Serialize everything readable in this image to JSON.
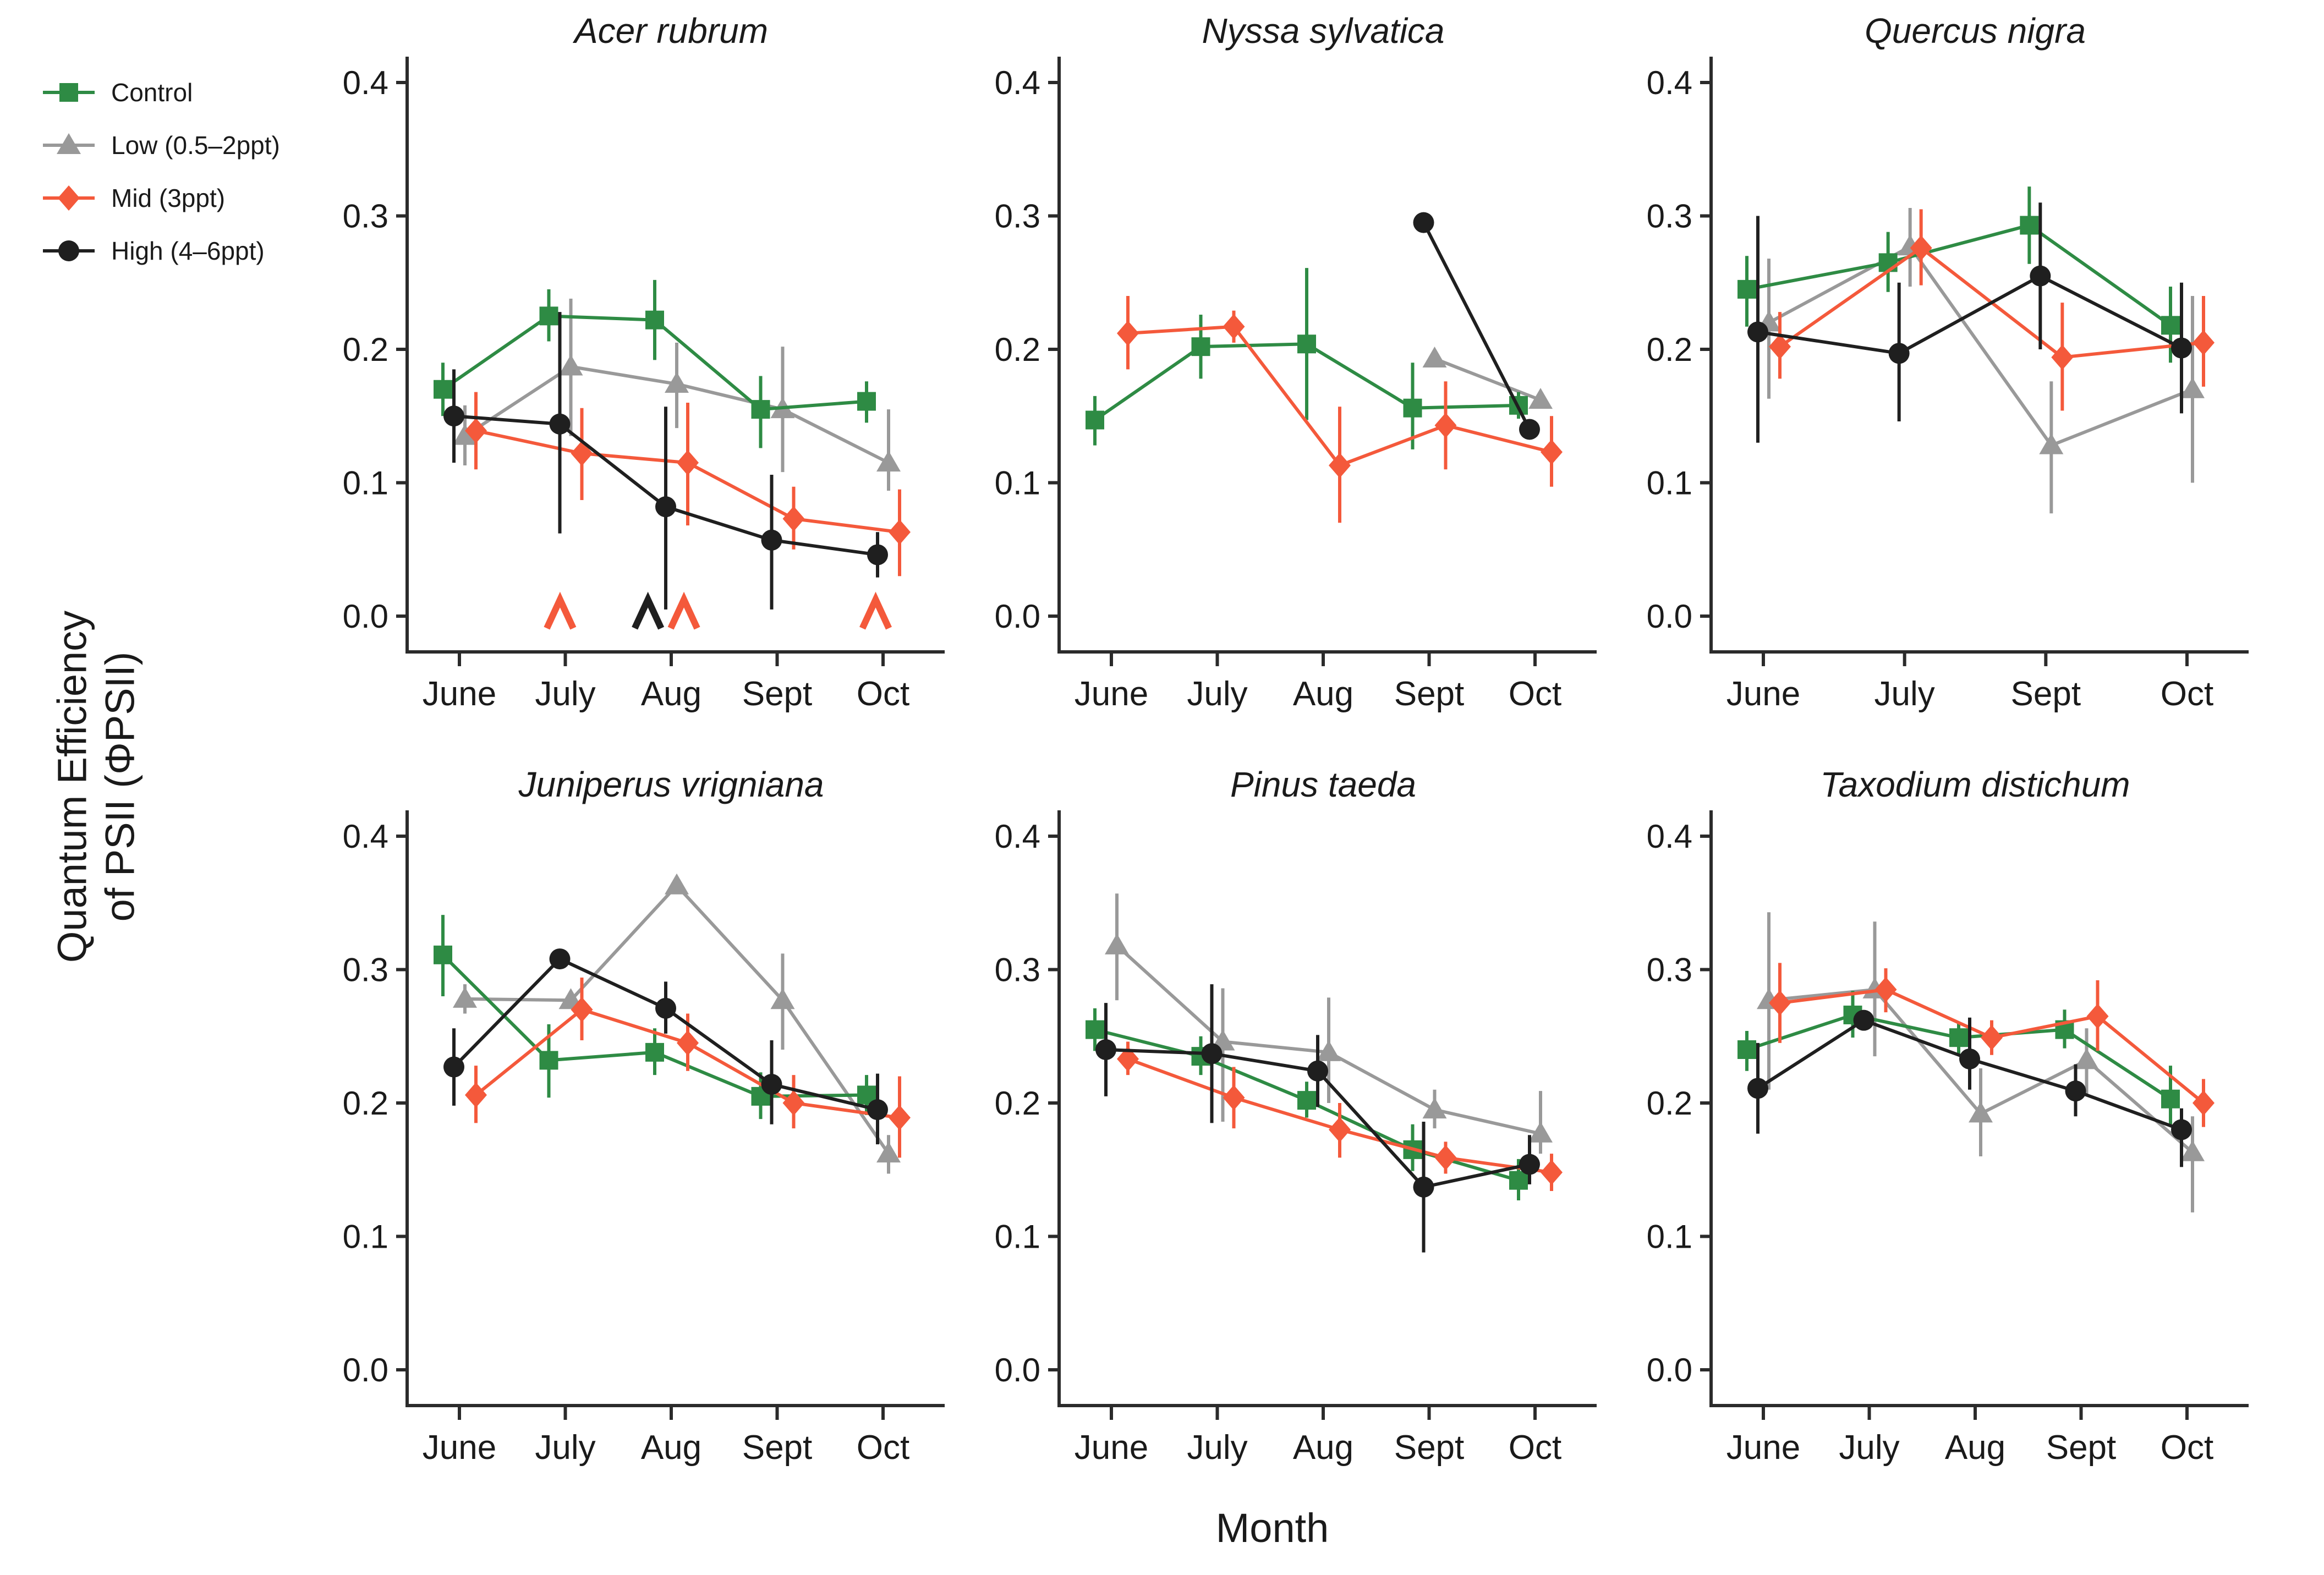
{
  "figure": {
    "y_axis_title_line1": "Quantum Efficiency",
    "y_axis_title_line2": "of PSII (ΦPSII)",
    "x_axis_title": "Month"
  },
  "colors": {
    "control": "#2e8b44",
    "low": "#999999",
    "mid": "#f4593b",
    "high": "#1f1f1f"
  },
  "legend": {
    "items": [
      {
        "key": "control",
        "label": "Control",
        "marker": "square"
      },
      {
        "key": "low",
        "label": "Low (0.5–2ppt)",
        "marker": "triangle"
      },
      {
        "key": "mid",
        "label": "Mid (3ppt)",
        "marker": "diamond"
      },
      {
        "key": "high",
        "label": "High (4–6ppt)",
        "marker": "circle"
      }
    ]
  },
  "chart_data": [
    {
      "type": "line",
      "title": "Acer rubrum",
      "months": [
        "June",
        "July",
        "Aug",
        "Sept",
        "Oct"
      ],
      "ylim": [
        0.0,
        0.4
      ],
      "y_tick_labels": [
        "0.0",
        "0.1",
        "0.2",
        "0.3",
        "0.4"
      ],
      "series": [
        {
          "key": "control",
          "name": "Control",
          "marker": "square",
          "values": [
            0.17,
            0.225,
            0.222,
            0.155,
            0.161
          ],
          "err_lo": [
            0.15,
            0.206,
            0.192,
            0.126,
            0.145
          ],
          "err_hi": [
            0.19,
            0.245,
            0.252,
            0.18,
            0.176
          ]
        },
        {
          "key": "low",
          "name": "Low (0.5–2ppt)",
          "marker": "triangle",
          "values": [
            0.135,
            0.187,
            0.174,
            0.155,
            0.115
          ],
          "err_lo": [
            0.113,
            0.135,
            0.141,
            0.108,
            0.094
          ],
          "err_hi": [
            0.158,
            0.238,
            0.205,
            0.202,
            0.155
          ]
        },
        {
          "key": "mid",
          "name": "Mid (3ppt)",
          "marker": "diamond",
          "values": [
            0.139,
            0.122,
            0.115,
            0.073,
            0.063
          ],
          "err_lo": [
            0.11,
            0.087,
            0.068,
            0.05,
            0.03
          ],
          "err_hi": [
            0.168,
            0.156,
            0.16,
            0.097,
            0.095
          ]
        },
        {
          "key": "high",
          "name": "High (4–6ppt)",
          "marker": "circle",
          "values": [
            0.15,
            0.144,
            0.082,
            0.057,
            0.046
          ],
          "err_lo": [
            0.115,
            0.062,
            0.005,
            0.005,
            0.029
          ],
          "err_hi": [
            0.185,
            0.228,
            0.157,
            0.106,
            0.063
          ]
        }
      ],
      "sig_marks": [
        {
          "month_index": 1,
          "offset": -0.05,
          "color_key": "mid"
        },
        {
          "month_index": 2,
          "offset": -0.22,
          "color_key": "high"
        },
        {
          "month_index": 2,
          "offset": 0.12,
          "color_key": "mid"
        },
        {
          "month_index": 4,
          "offset": -0.07,
          "color_key": "mid"
        }
      ]
    },
    {
      "type": "line",
      "title": "Nyssa sylvatica",
      "months": [
        "June",
        "July",
        "Aug",
        "Sept",
        "Oct"
      ],
      "ylim": [
        0.0,
        0.4
      ],
      "y_tick_labels": [
        "0.0",
        "0.1",
        "0.2",
        "0.3",
        "0.4"
      ],
      "series": [
        {
          "key": "control",
          "name": "Control",
          "marker": "square",
          "values": [
            0.147,
            0.202,
            0.204,
            0.156,
            0.158
          ],
          "err_lo": [
            0.128,
            0.178,
            0.147,
            0.125,
            0.148
          ],
          "err_hi": [
            0.165,
            0.226,
            0.261,
            0.19,
            0.168
          ]
        },
        {
          "key": "low",
          "name": "Low (0.5–2ppt)",
          "marker": "triangle",
          "values": [
            null,
            null,
            null,
            0.193,
            0.162
          ],
          "err_lo": [
            null,
            null,
            null,
            null,
            null
          ],
          "err_hi": [
            null,
            null,
            null,
            null,
            null
          ]
        },
        {
          "key": "mid",
          "name": "Mid (3ppt)",
          "marker": "diamond",
          "values": [
            0.212,
            0.217,
            0.113,
            0.143,
            0.123
          ],
          "err_lo": [
            0.185,
            0.205,
            0.07,
            0.11,
            0.097
          ],
          "err_hi": [
            0.24,
            0.229,
            0.157,
            0.176,
            0.15
          ]
        },
        {
          "key": "high",
          "name": "High (4–6ppt)",
          "marker": "circle",
          "values": [
            null,
            null,
            null,
            0.295,
            0.14
          ],
          "err_lo": [
            null,
            null,
            null,
            null,
            null
          ],
          "err_hi": [
            null,
            null,
            null,
            null,
            null
          ]
        }
      ],
      "sig_marks": []
    },
    {
      "type": "line",
      "title": "Quercus nigra",
      "months": [
        "June",
        "July",
        "Sept",
        "Oct"
      ],
      "ylim": [
        0.0,
        0.4
      ],
      "y_tick_labels": [
        "0.0",
        "0.1",
        "0.2",
        "0.3",
        "0.4"
      ],
      "series": [
        {
          "key": "control",
          "name": "Control",
          "marker": "square",
          "values": [
            0.245,
            0.265,
            0.293,
            0.218
          ],
          "err_lo": [
            0.217,
            0.243,
            0.264,
            0.19
          ],
          "err_hi": [
            0.27,
            0.288,
            0.322,
            0.247
          ]
        },
        {
          "key": "low",
          "name": "Low (0.5–2ppt)",
          "marker": "triangle",
          "values": [
            0.22,
            0.277,
            0.128,
            0.17
          ],
          "err_lo": [
            0.163,
            0.247,
            0.077,
            0.1
          ],
          "err_hi": [
            0.268,
            0.306,
            0.176,
            0.24
          ]
        },
        {
          "key": "mid",
          "name": "Mid (3ppt)",
          "marker": "diamond",
          "values": [
            0.202,
            0.276,
            0.194,
            0.205
          ],
          "err_lo": [
            0.178,
            0.248,
            0.154,
            0.172
          ],
          "err_hi": [
            0.228,
            0.305,
            0.235,
            0.24
          ]
        },
        {
          "key": "high",
          "name": "High (4–6ppt)",
          "marker": "circle",
          "values": [
            0.213,
            0.197,
            0.255,
            0.201
          ],
          "err_lo": [
            0.13,
            0.146,
            0.2,
            0.152
          ],
          "err_hi": [
            0.3,
            0.25,
            0.31,
            0.25
          ]
        }
      ],
      "sig_marks": []
    },
    {
      "type": "line",
      "title": "Juniperus vrigniana",
      "months": [
        "June",
        "July",
        "Aug",
        "Sept",
        "Oct"
      ],
      "ylim": [
        0.0,
        0.4
      ],
      "y_tick_labels": [
        "0.0",
        "0.1",
        "0.2",
        "0.3",
        "0.4"
      ],
      "series": [
        {
          "key": "control",
          "name": "Control",
          "marker": "square",
          "values": [
            0.311,
            0.232,
            0.238,
            0.205,
            0.206
          ],
          "err_lo": [
            0.28,
            0.204,
            0.221,
            0.188,
            0.191
          ],
          "err_hi": [
            0.341,
            0.259,
            0.256,
            0.223,
            0.221
          ]
        },
        {
          "key": "low",
          "name": "Low (0.5–2ppt)",
          "marker": "triangle",
          "values": [
            0.278,
            0.277,
            0.363,
            0.277,
            0.162
          ],
          "err_lo": [
            0.267,
            null,
            null,
            0.24,
            0.147
          ],
          "err_hi": [
            0.289,
            null,
            null,
            0.312,
            0.176
          ]
        },
        {
          "key": "mid",
          "name": "Mid (3ppt)",
          "marker": "diamond",
          "values": [
            0.206,
            0.27,
            0.245,
            0.2,
            0.189
          ],
          "err_lo": [
            0.185,
            0.247,
            0.224,
            0.181,
            0.159
          ],
          "err_hi": [
            0.228,
            0.294,
            0.267,
            0.221,
            0.22
          ]
        },
        {
          "key": "high",
          "name": "High (4–6ppt)",
          "marker": "circle",
          "values": [
            0.227,
            0.308,
            0.271,
            0.214,
            0.195
          ],
          "err_lo": [
            0.198,
            null,
            0.252,
            0.184,
            0.169
          ],
          "err_hi": [
            0.256,
            null,
            0.291,
            0.247,
            0.222
          ]
        }
      ],
      "sig_marks": []
    },
    {
      "type": "line",
      "title": "Pinus taeda",
      "months": [
        "June",
        "July",
        "Aug",
        "Sept",
        "Oct"
      ],
      "ylim": [
        0.0,
        0.4
      ],
      "y_tick_labels": [
        "0.0",
        "0.1",
        "0.2",
        "0.3",
        "0.4"
      ],
      "series": [
        {
          "key": "control",
          "name": "Control",
          "marker": "square",
          "values": [
            0.255,
            0.235,
            0.202,
            0.165,
            0.142
          ],
          "err_lo": [
            0.239,
            0.221,
            0.189,
            0.149,
            0.127
          ],
          "err_hi": [
            0.271,
            0.25,
            0.216,
            0.184,
            0.158
          ]
        },
        {
          "key": "low",
          "name": "Low (0.5–2ppt)",
          "marker": "triangle",
          "values": [
            0.318,
            0.246,
            0.238,
            0.195,
            0.177
          ],
          "err_lo": [
            0.277,
            0.186,
            0.2,
            0.181,
            0.162
          ],
          "err_hi": [
            0.357,
            0.286,
            0.279,
            0.21,
            0.209
          ]
        },
        {
          "key": "mid",
          "name": "Mid (3ppt)",
          "marker": "diamond",
          "values": [
            0.233,
            0.204,
            0.18,
            0.159,
            0.148
          ],
          "err_lo": [
            0.221,
            0.181,
            0.159,
            0.147,
            0.134
          ],
          "err_hi": [
            0.246,
            0.227,
            0.2,
            0.171,
            0.162
          ]
        },
        {
          "key": "high",
          "name": "High (4–6ppt)",
          "marker": "circle",
          "values": [
            0.24,
            0.237,
            0.224,
            0.137,
            0.154
          ],
          "err_lo": [
            0.205,
            0.185,
            0.197,
            0.088,
            0.139
          ],
          "err_hi": [
            0.275,
            0.289,
            0.251,
            0.186,
            0.176
          ]
        }
      ],
      "sig_marks": []
    },
    {
      "type": "line",
      "title": "Taxodium distichum",
      "months": [
        "June",
        "July",
        "Aug",
        "Sept",
        "Oct"
      ],
      "ylim": [
        0.0,
        0.4
      ],
      "y_tick_labels": [
        "0.0",
        "0.1",
        "0.2",
        "0.3",
        "0.4"
      ],
      "series": [
        {
          "key": "control",
          "name": "Control",
          "marker": "square",
          "values": [
            0.24,
            0.266,
            0.249,
            0.255,
            0.203
          ],
          "err_lo": [
            0.224,
            0.249,
            0.237,
            0.241,
            0.184
          ],
          "err_hi": [
            0.254,
            0.284,
            0.261,
            0.27,
            0.228
          ]
        },
        {
          "key": "low",
          "name": "Low (0.5–2ppt)",
          "marker": "triangle",
          "values": [
            0.277,
            0.285,
            0.192,
            0.232,
            0.163
          ],
          "err_lo": [
            0.21,
            0.235,
            0.16,
            0.206,
            0.118
          ],
          "err_hi": [
            0.343,
            0.336,
            0.226,
            0.256,
            0.19
          ]
        },
        {
          "key": "mid",
          "name": "Mid (3ppt)",
          "marker": "diamond",
          "values": [
            0.275,
            0.285,
            0.249,
            0.265,
            0.2
          ],
          "err_lo": [
            0.245,
            0.268,
            0.236,
            0.239,
            0.182
          ],
          "err_hi": [
            0.305,
            0.301,
            0.262,
            0.292,
            0.218
          ]
        },
        {
          "key": "high",
          "name": "High (4–6ppt)",
          "marker": "circle",
          "values": [
            0.211,
            0.262,
            0.233,
            0.209,
            0.18
          ],
          "err_lo": [
            0.177,
            null,
            0.21,
            0.19,
            0.152
          ],
          "err_hi": [
            0.245,
            null,
            0.264,
            0.229,
            0.196
          ]
        }
      ],
      "sig_marks": []
    }
  ]
}
